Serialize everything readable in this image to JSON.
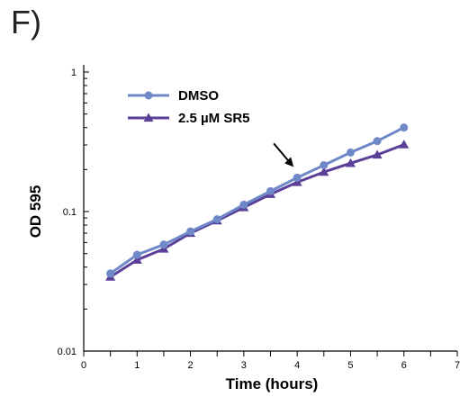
{
  "panel_label": "F)",
  "chart_data": {
    "type": "line",
    "xlabel": "Time (hours)",
    "ylabel": "OD 595",
    "xlim": [
      0,
      7
    ],
    "ylim": [
      0.01,
      1
    ],
    "y_scale": "log",
    "x_ticks": [
      "0",
      "1",
      "2",
      "3",
      "4",
      "5",
      "6",
      "7"
    ],
    "y_ticks": [
      "0.01",
      "0.1",
      "1"
    ],
    "grid": false,
    "legend_position": "top-left",
    "series": [
      {
        "name": "DMSO",
        "color": "#6f88c8",
        "marker": "circle",
        "x": [
          0.5,
          1,
          1.5,
          2,
          2.5,
          3,
          3.5,
          4,
          4.5,
          5,
          5.5,
          6
        ],
        "y": [
          0.036,
          0.049,
          0.058,
          0.072,
          0.088,
          0.112,
          0.14,
          0.175,
          0.215,
          0.265,
          0.32,
          0.4
        ]
      },
      {
        "name": "2.5 µM SR5",
        "color": "#5b3f98",
        "marker": "triangle",
        "x": [
          0.5,
          1,
          1.5,
          2,
          2.5,
          3,
          3.5,
          4,
          4.5,
          5,
          5.5,
          6
        ],
        "y": [
          0.034,
          0.045,
          0.054,
          0.07,
          0.086,
          0.107,
          0.133,
          0.162,
          0.192,
          0.222,
          0.255,
          0.302
        ]
      }
    ],
    "annotations": [
      {
        "type": "arrow",
        "x": 4,
        "y": 0.2,
        "direction": "down-right"
      }
    ]
  }
}
